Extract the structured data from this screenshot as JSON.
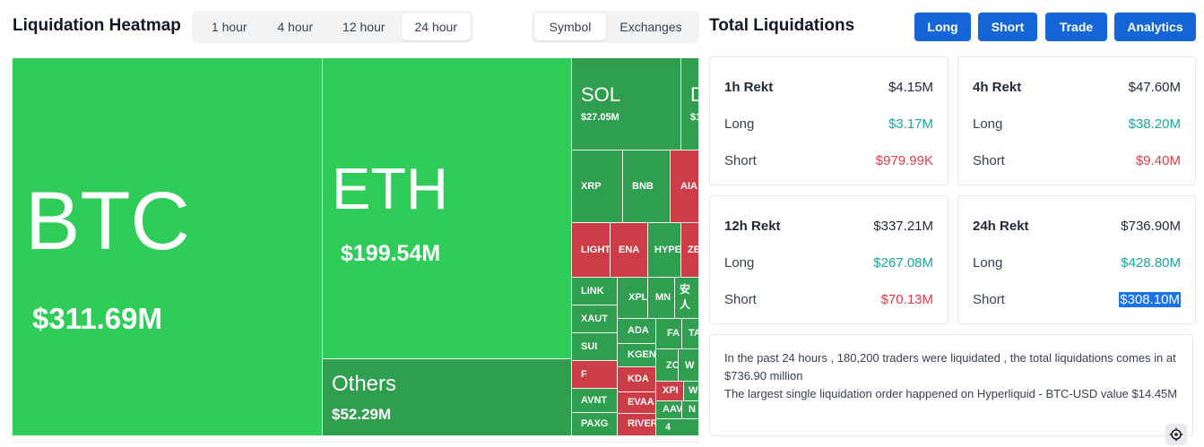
{
  "heatmap": {
    "title": "Liquidation Heatmap",
    "time_options": [
      "1 hour",
      "4 hour",
      "12 hour",
      "24 hour"
    ],
    "active_time": "24 hour",
    "view_options": [
      "Symbol",
      "Exchanges"
    ],
    "active_view": "Symbol",
    "tiles": {
      "btc": {
        "symbol": "BTC",
        "value": "$311.69M"
      },
      "eth": {
        "symbol": "ETH",
        "value": "$199.54M"
      },
      "others": {
        "symbol": "Others",
        "value": "$52.29M"
      },
      "sol": {
        "symbol": "SOL",
        "value": "$27.05M"
      },
      "doge": {
        "symbol": "D",
        "value": "$1"
      },
      "xrp": "XRP",
      "bnb": "BNB",
      "aia": "AIA",
      "light": "LIGHT",
      "ena": "ENA",
      "hype": "HYPE",
      "zec": "ZE",
      "link": "LINK",
      "xpl": "XPL",
      "mn": "MN",
      "an": "安人",
      "xaut": "XAUT",
      "ada": "ADA",
      "fa": "FA",
      "ta": "TA",
      "sui": "SUI",
      "kgen": "KGEN",
      "zo": "ZO",
      "w1": "W",
      "f": "F",
      "kda": "KDA",
      "avnt": "AVNT",
      "evaa": "EVAA",
      "xpi": "XPI",
      "w2": "W",
      "paxg": "PAXG",
      "river": "RIVER",
      "aav": "AAV",
      "n": "N",
      "n4": "4"
    }
  },
  "liquidations": {
    "title": "Total Liquidations",
    "buttons": [
      "Long",
      "Short",
      "Trade",
      "Analytics"
    ],
    "cards": [
      {
        "label": "1h Rekt",
        "total": "$4.15M",
        "long_label": "Long",
        "long": "$3.17M",
        "short_label": "Short",
        "short": "$979.99K"
      },
      {
        "label": "4h Rekt",
        "total": "$47.60M",
        "long_label": "Long",
        "long": "$38.20M",
        "short_label": "Short",
        "short": "$9.40M"
      },
      {
        "label": "12h Rekt",
        "total": "$337.21M",
        "long_label": "Long",
        "long": "$267.08M",
        "short_label": "Short",
        "short": "$70.13M"
      },
      {
        "label": "24h Rekt",
        "total": "$736.90M",
        "long_label": "Long",
        "long": "$428.80M",
        "short_label": "Short",
        "short": "$308.10M"
      }
    ],
    "summary_line1": "In the past 24 hours , 180,200 traders were liquidated , the total liquidations comes in at $736.90 million",
    "summary_line2": "The largest single liquidation order happened on Hyperliquid - BTC-USD value $14.45M"
  },
  "colors": {
    "green_big": "#30cc5a",
    "green_dark": "#2f9e4e",
    "red": "#cc3d47",
    "accent": "#1565d8",
    "long": "#16a89a",
    "short": "#e23b4a"
  },
  "icons": {
    "settings": "gear-icon"
  }
}
